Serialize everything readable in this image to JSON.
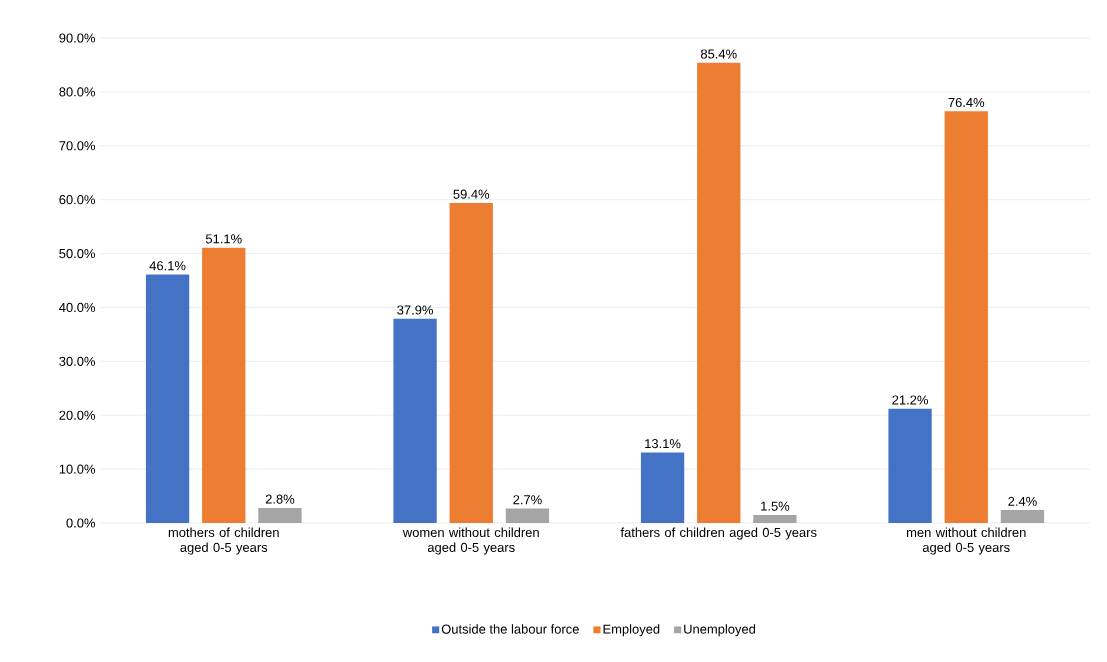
{
  "chart_data": {
    "type": "bar",
    "categories": [
      "mothers of children aged 0-5 years",
      "women without children aged 0-5 years",
      "fathers of children aged 0-5 years",
      "men without children aged 0-5 years"
    ],
    "series": [
      {
        "name": "Outside the labour force",
        "color": "#4472c4",
        "values": [
          46.1,
          37.9,
          13.1,
          21.2
        ],
        "value_labels": [
          "46.1%",
          "37.9%",
          "13.1%",
          "21.2%"
        ]
      },
      {
        "name": "Employed",
        "color": "#ed7d31",
        "values": [
          51.1,
          59.4,
          85.4,
          76.4
        ],
        "value_labels": [
          "51.1%",
          "59.4%",
          "85.4%",
          "76.4%"
        ]
      },
      {
        "name": "Unemployed",
        "color": "#a5a5a5",
        "values": [
          2.8,
          2.7,
          1.5,
          2.4
        ],
        "value_labels": [
          "2.8%",
          "2.7%",
          "1.5%",
          "2.4%"
        ]
      }
    ],
    "ylim": [
      0,
      90
    ],
    "yticks": [
      {
        "value": 0,
        "label": "0.0%"
      },
      {
        "value": 10,
        "label": "10.0%"
      },
      {
        "value": 20,
        "label": "20.0%"
      },
      {
        "value": 30,
        "label": "30.0%"
      },
      {
        "value": 40,
        "label": "40.0%"
      },
      {
        "value": 50,
        "label": "50.0%"
      },
      {
        "value": 60,
        "label": "60.0%"
      },
      {
        "value": 70,
        "label": "70.0%"
      },
      {
        "value": 80,
        "label": "80.0%"
      },
      {
        "value": 90,
        "label": "90.0%"
      }
    ],
    "grid": "y",
    "legend": "bottom"
  }
}
